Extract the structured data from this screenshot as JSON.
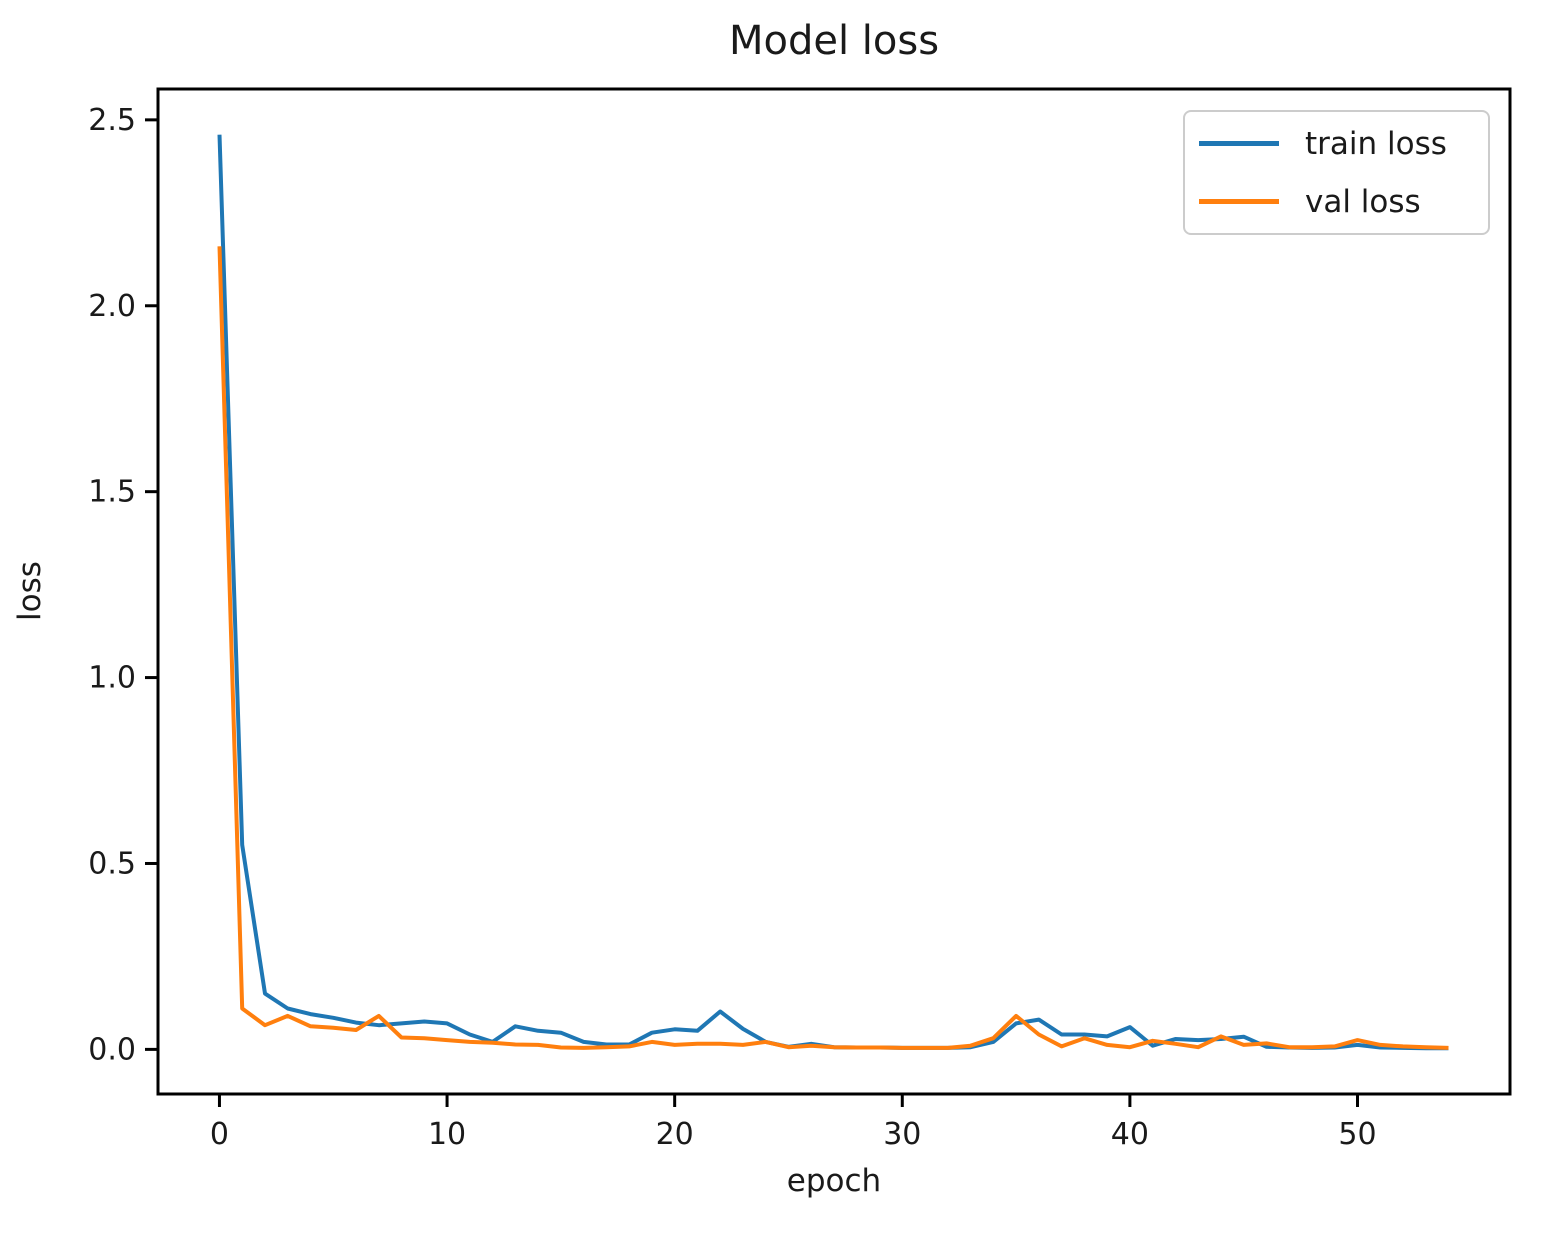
{
  "figure": {
    "background": "#ffffff",
    "frame_color": "#000000",
    "text_color": "#1a1a1a",
    "legend_border_color": "#cccccc"
  },
  "chart_data": {
    "type": "line",
    "title": "Model loss",
    "xlabel": "epoch",
    "ylabel": "loss",
    "grid": false,
    "legend_position": "upper right",
    "xlim": [
      -2.7,
      56.7
    ],
    "ylim": [
      -0.12,
      2.583
    ],
    "x_ticks": {
      "values": [
        0,
        10,
        20,
        30,
        40,
        50
      ],
      "labels": [
        "0",
        "10",
        "20",
        "30",
        "40",
        "50"
      ]
    },
    "y_ticks": {
      "values": [
        0.0,
        0.5,
        1.0,
        1.5,
        2.0,
        2.5
      ],
      "labels": [
        "0.0",
        "0.5",
        "1.0",
        "1.5",
        "2.0",
        "2.5"
      ]
    },
    "x": [
      0,
      1,
      2,
      3,
      4,
      5,
      6,
      7,
      8,
      9,
      10,
      11,
      12,
      13,
      14,
      15,
      16,
      17,
      18,
      19,
      20,
      21,
      22,
      23,
      24,
      25,
      26,
      27,
      28,
      29,
      30,
      31,
      32,
      33,
      34,
      35,
      36,
      37,
      38,
      39,
      40,
      41,
      42,
      43,
      44,
      45,
      46,
      47,
      48,
      49,
      50,
      51,
      52,
      53,
      54
    ],
    "series": [
      {
        "name": "train loss",
        "color": "#1f77b4",
        "values": [
          2.46,
          0.55,
          0.15,
          0.11,
          0.095,
          0.085,
          0.072,
          0.065,
          0.07,
          0.075,
          0.07,
          0.04,
          0.02,
          0.062,
          0.05,
          0.045,
          0.02,
          0.013,
          0.013,
          0.045,
          0.054,
          0.05,
          0.102,
          0.055,
          0.02,
          0.007,
          0.015,
          0.006,
          0.005,
          0.005,
          0.004,
          0.004,
          0.004,
          0.006,
          0.02,
          0.07,
          0.08,
          0.04,
          0.04,
          0.035,
          0.06,
          0.01,
          0.028,
          0.025,
          0.028,
          0.034,
          0.007,
          0.005,
          0.004,
          0.005,
          0.012,
          0.005,
          0.004,
          0.003,
          0.003
        ]
      },
      {
        "name": "val loss",
        "color": "#ff7f0e",
        "values": [
          2.16,
          0.11,
          0.065,
          0.09,
          0.062,
          0.058,
          0.052,
          0.09,
          0.032,
          0.03,
          0.025,
          0.02,
          0.018,
          0.013,
          0.012,
          0.005,
          0.004,
          0.006,
          0.008,
          0.02,
          0.012,
          0.015,
          0.015,
          0.012,
          0.02,
          0.006,
          0.01,
          0.006,
          0.005,
          0.005,
          0.004,
          0.004,
          0.004,
          0.01,
          0.03,
          0.09,
          0.04,
          0.008,
          0.03,
          0.012,
          0.006,
          0.023,
          0.015,
          0.006,
          0.035,
          0.012,
          0.016,
          0.006,
          0.006,
          0.008,
          0.025,
          0.012,
          0.008,
          0.006,
          0.004
        ]
      }
    ]
  }
}
